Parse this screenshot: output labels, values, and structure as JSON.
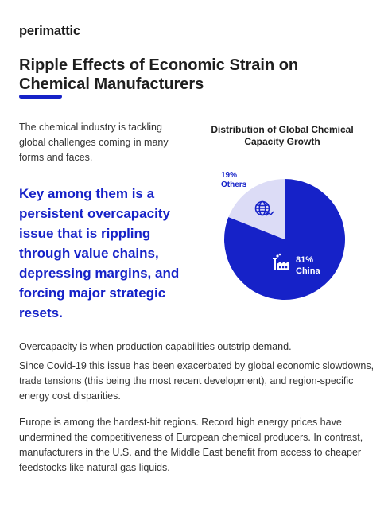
{
  "brand": {
    "logo": "perimattic"
  },
  "header": {
    "title": "Ripple Effects of Economic Strain on Chemical Manufacturers"
  },
  "intro": {
    "text": "The chemical industry is tackling global challenges coming in many forms and faces.",
    "highlight": "Key among them is a persistent overcapacity issue that is rippling through value chains, depressing margins, and forcing major strategic resets."
  },
  "chart_data": {
    "type": "pie",
    "title": "Distribution of Global Chemical Capacity Growth",
    "slices": [
      {
        "name": "China",
        "value": 81,
        "label": "81%",
        "color": "#1622c8",
        "icon": "factory-icon"
      },
      {
        "name": "Others",
        "value": 19,
        "label": "19%",
        "color": "#dcdcf6",
        "icon": "globe-icon"
      }
    ]
  },
  "body": {
    "p1": "Overcapacity is when production capabilities outstrip demand.",
    "p2": "Since Covid-19 this issue has been exacerbated by global economic slowdowns, trade tensions (this being the most recent development), and region-specific energy cost disparities.",
    "p3": "Europe is among the hardest-hit regions. Record high energy prices have undermined the competitiveness of European chemical producers. In contrast, manufacturers in the U.S. and the Middle East benefit from access to cheaper feedstocks like natural gas liquids."
  }
}
